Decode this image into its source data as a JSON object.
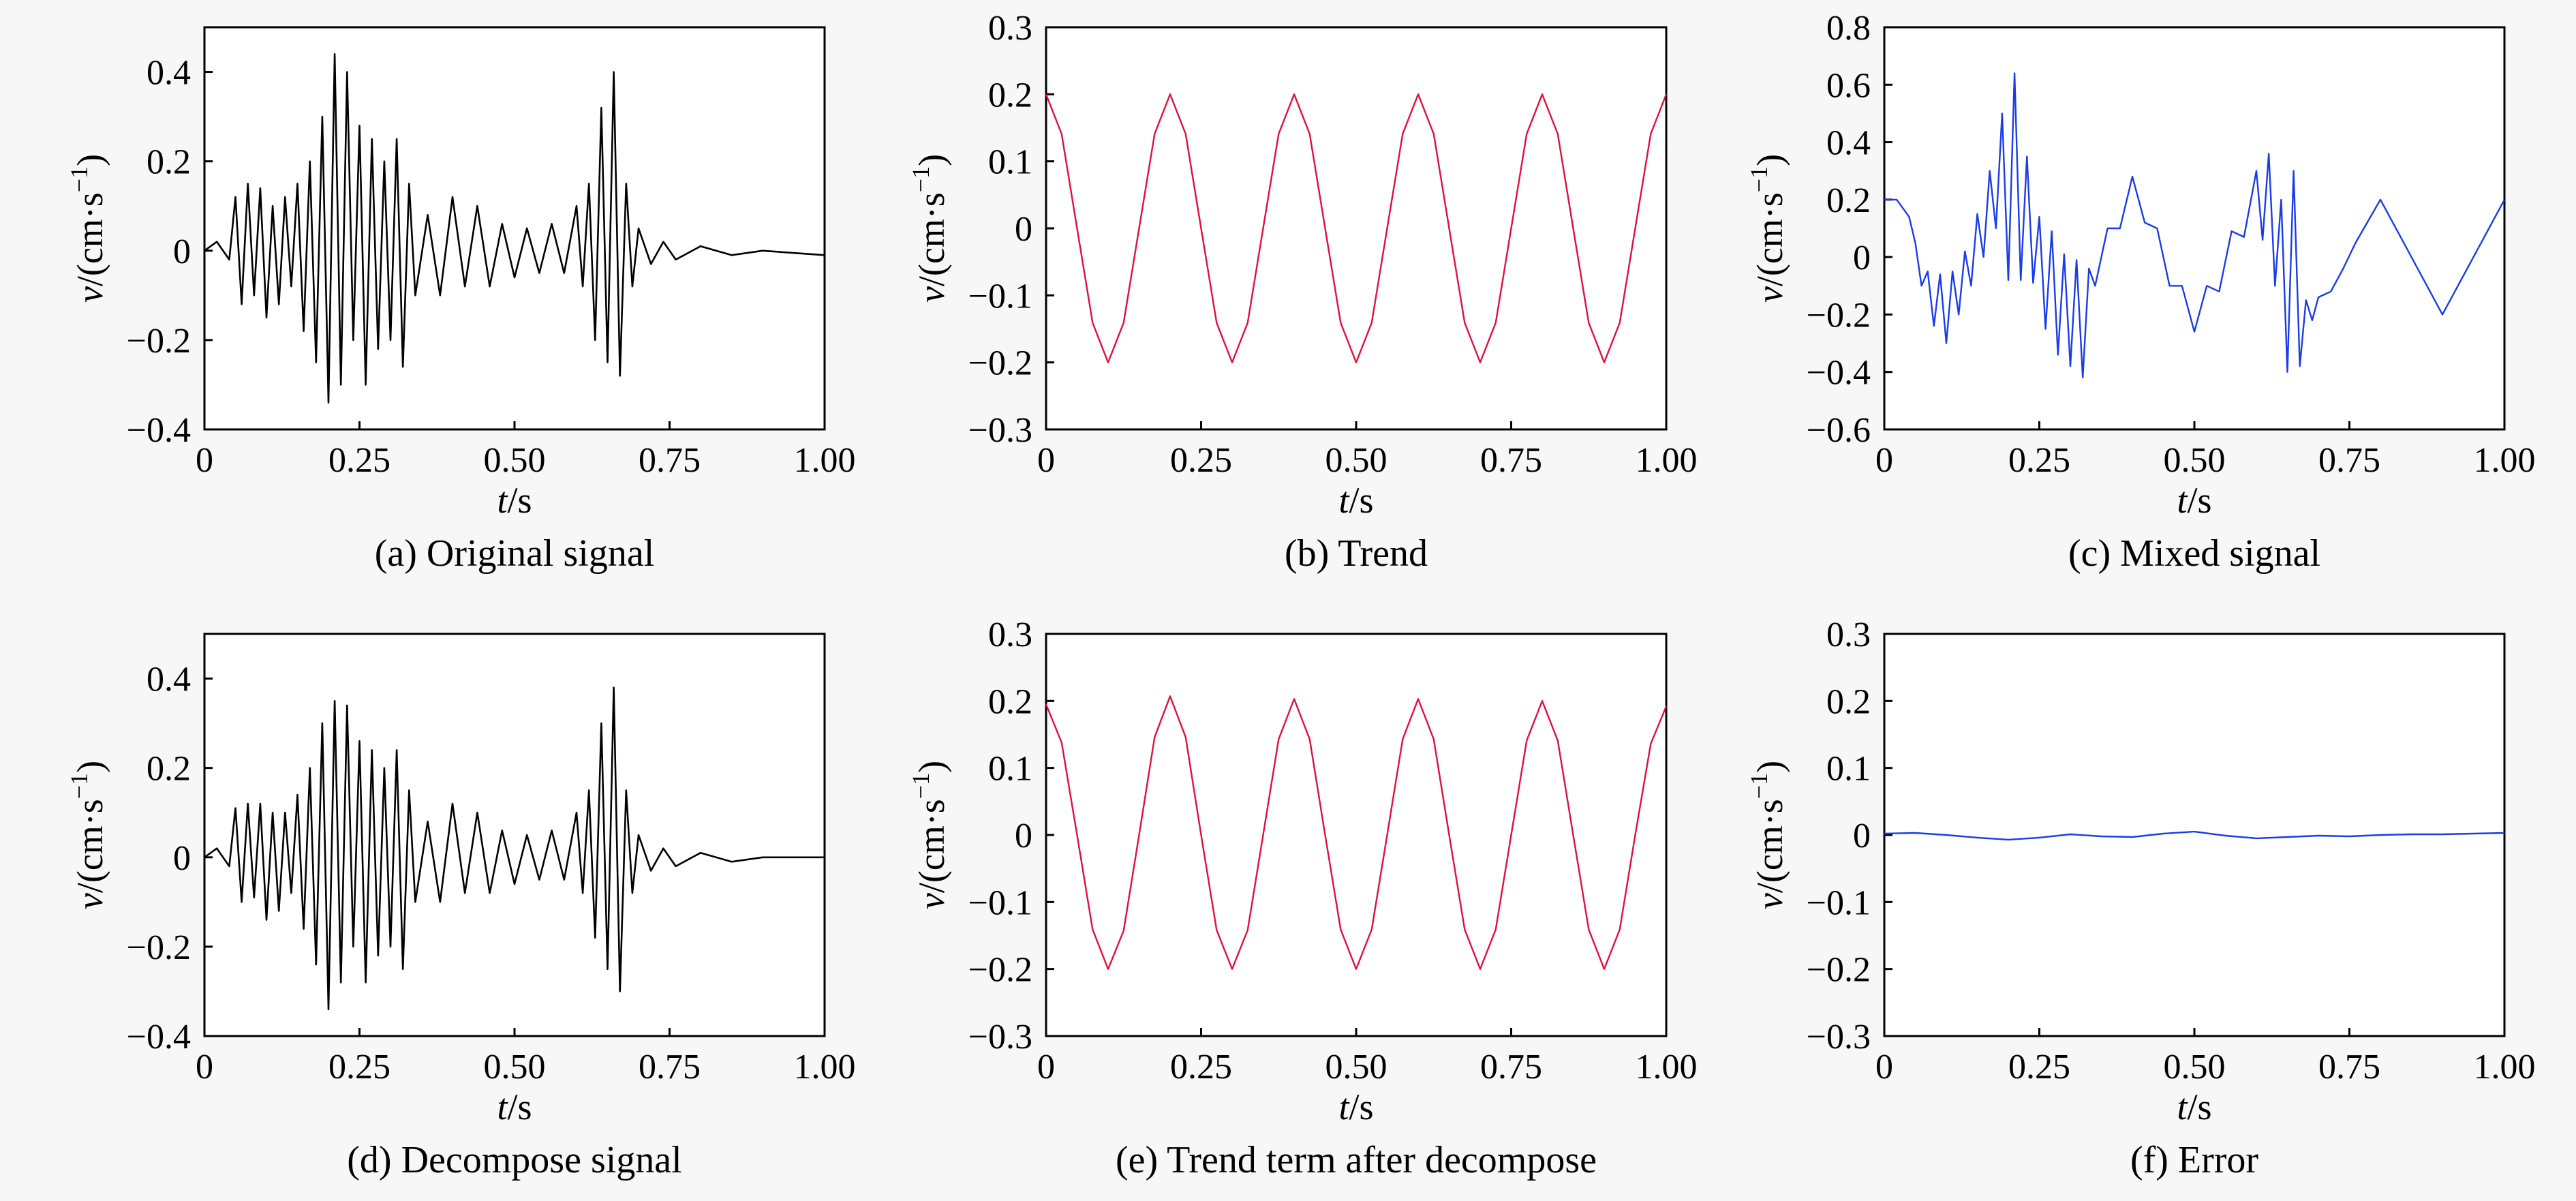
{
  "chart_data": [
    {
      "id": "a",
      "type": "line",
      "caption": "(a) Original signal",
      "xlabel_var": "t",
      "xlabel_unit": "/s",
      "ylabel_var": "v",
      "ylabel_unit": "/(cm·s",
      "ylabel_exp": "−1",
      "ylabel_close": ")",
      "xlim": [
        0,
        1.0
      ],
      "ylim": [
        -0.4,
        0.5
      ],
      "xticks": [
        {
          "v": 0,
          "label": "0"
        },
        {
          "v": 0.25,
          "label": "0.25"
        },
        {
          "v": 0.5,
          "label": "0.50"
        },
        {
          "v": 0.75,
          "label": "0.75"
        },
        {
          "v": 1.0,
          "label": "1.00"
        }
      ],
      "yticks": [
        {
          "v": -0.4,
          "label": "−0.4"
        },
        {
          "v": -0.2,
          "label": "−0.2"
        },
        {
          "v": 0,
          "label": "0"
        },
        {
          "v": 0.2,
          "label": "0.2"
        },
        {
          "v": 0.4,
          "label": "0.4"
        }
      ],
      "series": [
        {
          "color": "#000000",
          "x": [
            0,
            0.02,
            0.04,
            0.05,
            0.06,
            0.07,
            0.08,
            0.09,
            0.1,
            0.11,
            0.12,
            0.13,
            0.14,
            0.15,
            0.16,
            0.17,
            0.18,
            0.19,
            0.2,
            0.21,
            0.22,
            0.23,
            0.24,
            0.25,
            0.26,
            0.27,
            0.28,
            0.29,
            0.3,
            0.31,
            0.32,
            0.33,
            0.34,
            0.36,
            0.38,
            0.4,
            0.42,
            0.44,
            0.46,
            0.48,
            0.5,
            0.52,
            0.54,
            0.56,
            0.58,
            0.6,
            0.61,
            0.62,
            0.63,
            0.64,
            0.65,
            0.66,
            0.67,
            0.68,
            0.69,
            0.7,
            0.72,
            0.74,
            0.76,
            0.8,
            0.85,
            0.9,
            1.0
          ],
          "y": [
            0,
            0.02,
            -0.02,
            0.12,
            -0.12,
            0.15,
            -0.1,
            0.14,
            -0.15,
            0.1,
            -0.12,
            0.12,
            -0.08,
            0.15,
            -0.18,
            0.2,
            -0.25,
            0.3,
            -0.34,
            0.44,
            -0.3,
            0.4,
            -0.2,
            0.28,
            -0.3,
            0.25,
            -0.22,
            0.2,
            -0.2,
            0.25,
            -0.26,
            0.15,
            -0.1,
            0.08,
            -0.1,
            0.12,
            -0.08,
            0.1,
            -0.08,
            0.06,
            -0.06,
            0.05,
            -0.05,
            0.06,
            -0.05,
            0.1,
            -0.08,
            0.15,
            -0.2,
            0.32,
            -0.25,
            0.4,
            -0.28,
            0.15,
            -0.08,
            0.05,
            -0.03,
            0.02,
            -0.02,
            0.01,
            -0.01,
            0,
            -0.01
          ]
        }
      ]
    },
    {
      "id": "b",
      "type": "line",
      "caption": "(b) Trend",
      "xlabel_var": "t",
      "xlabel_unit": "/s",
      "ylabel_var": "v",
      "ylabel_unit": "/(cm·s",
      "ylabel_exp": "−1",
      "ylabel_close": ")",
      "xlim": [
        0,
        1.0
      ],
      "ylim": [
        -0.3,
        0.3
      ],
      "xticks": [
        {
          "v": 0,
          "label": "0"
        },
        {
          "v": 0.25,
          "label": "0.25"
        },
        {
          "v": 0.5,
          "label": "0.50"
        },
        {
          "v": 0.75,
          "label": "0.75"
        },
        {
          "v": 1.0,
          "label": "1.00"
        }
      ],
      "yticks": [
        {
          "v": -0.3,
          "label": "−0.3"
        },
        {
          "v": -0.2,
          "label": "−0.2"
        },
        {
          "v": -0.1,
          "label": "−0.1"
        },
        {
          "v": 0,
          "label": "0"
        },
        {
          "v": 0.1,
          "label": "0.1"
        },
        {
          "v": 0.2,
          "label": "0.2"
        },
        {
          "v": 0.3,
          "label": "0.3"
        }
      ],
      "series": [
        {
          "color": "#e0103c",
          "x": [
            0,
            0.025,
            0.05,
            0.075,
            0.1,
            0.125,
            0.15,
            0.175,
            0.2,
            0.225,
            0.25,
            0.275,
            0.3,
            0.325,
            0.35,
            0.375,
            0.4,
            0.425,
            0.45,
            0.475,
            0.5,
            0.525,
            0.55,
            0.575,
            0.6,
            0.625,
            0.65,
            0.675,
            0.7,
            0.725,
            0.75,
            0.775,
            0.8,
            0.825,
            0.85,
            0.875,
            0.9,
            0.925,
            0.95,
            0.975,
            1.0
          ],
          "y": [
            0.2,
            0.141,
            0,
            -0.141,
            -0.2,
            -0.141,
            0,
            0.141,
            0.2,
            0.141,
            0,
            -0.141,
            -0.2,
            -0.141,
            0,
            0.141,
            0.2,
            0.141,
            0,
            -0.141,
            -0.2,
            -0.141,
            0,
            0.141,
            0.2,
            0.141,
            0,
            -0.141,
            -0.2,
            -0.141,
            0,
            0.141,
            0.2,
            0.141,
            0,
            -0.141,
            -0.2,
            -0.141,
            0,
            0.141,
            0.2
          ]
        }
      ]
    },
    {
      "id": "c",
      "type": "line",
      "caption": "(c) Mixed signal",
      "xlabel_var": "t",
      "xlabel_unit": "/s",
      "ylabel_var": "v",
      "ylabel_unit": "/(cm·s",
      "ylabel_exp": "−1",
      "ylabel_close": ")",
      "xlim": [
        0,
        1.0
      ],
      "ylim": [
        -0.6,
        0.8
      ],
      "xticks": [
        {
          "v": 0,
          "label": "0"
        },
        {
          "v": 0.25,
          "label": "0.25"
        },
        {
          "v": 0.5,
          "label": "0.50"
        },
        {
          "v": 0.75,
          "label": "0.75"
        },
        {
          "v": 1.0,
          "label": "1.00"
        }
      ],
      "yticks": [
        {
          "v": -0.6,
          "label": "−0.6"
        },
        {
          "v": -0.4,
          "label": "−0.4"
        },
        {
          "v": -0.2,
          "label": "−0.2"
        },
        {
          "v": 0,
          "label": "0"
        },
        {
          "v": 0.2,
          "label": "0.2"
        },
        {
          "v": 0.4,
          "label": "0.4"
        },
        {
          "v": 0.6,
          "label": "0.6"
        },
        {
          "v": 0.8,
          "label": "0.8"
        }
      ],
      "series": [
        {
          "color": "#1a3ce8",
          "x": [
            0,
            0.02,
            0.04,
            0.05,
            0.06,
            0.07,
            0.08,
            0.09,
            0.1,
            0.11,
            0.12,
            0.13,
            0.14,
            0.15,
            0.16,
            0.17,
            0.18,
            0.19,
            0.2,
            0.21,
            0.22,
            0.23,
            0.24,
            0.25,
            0.26,
            0.27,
            0.28,
            0.29,
            0.3,
            0.31,
            0.32,
            0.33,
            0.34,
            0.36,
            0.38,
            0.4,
            0.42,
            0.44,
            0.46,
            0.48,
            0.5,
            0.52,
            0.54,
            0.56,
            0.58,
            0.6,
            0.61,
            0.62,
            0.63,
            0.64,
            0.65,
            0.66,
            0.67,
            0.68,
            0.69,
            0.7,
            0.72,
            0.74,
            0.76,
            0.8,
            0.85,
            0.9,
            1.0
          ],
          "y": [
            0.2,
            0.2,
            0.14,
            0.05,
            -0.1,
            -0.05,
            -0.24,
            -0.06,
            -0.3,
            -0.05,
            -0.2,
            0.02,
            -0.1,
            0.15,
            0.0,
            0.3,
            0.1,
            0.5,
            -0.08,
            0.64,
            -0.08,
            0.35,
            -0.09,
            0.14,
            -0.25,
            0.09,
            -0.34,
            0.01,
            -0.38,
            -0.01,
            -0.42,
            -0.04,
            -0.1,
            0.1,
            0.1,
            0.28,
            0.12,
            0.1,
            -0.1,
            -0.1,
            -0.26,
            -0.1,
            -0.12,
            0.09,
            0.07,
            0.3,
            0.06,
            0.36,
            -0.1,
            0.2,
            -0.4,
            0.3,
            -0.38,
            -0.15,
            -0.22,
            -0.14,
            -0.12,
            -0.04,
            0.05,
            0.2,
            0,
            -0.2,
            0.2
          ]
        }
      ]
    },
    {
      "id": "d",
      "type": "line",
      "caption": "(d) Decompose signal",
      "xlabel_var": "t",
      "xlabel_unit": "/s",
      "ylabel_var": "v",
      "ylabel_unit": "/(cm·s",
      "ylabel_exp": "−1",
      "ylabel_close": ")",
      "xlim": [
        0,
        1.0
      ],
      "ylim": [
        -0.4,
        0.5
      ],
      "xticks": [
        {
          "v": 0,
          "label": "0"
        },
        {
          "v": 0.25,
          "label": "0.25"
        },
        {
          "v": 0.5,
          "label": "0.50"
        },
        {
          "v": 0.75,
          "label": "0.75"
        },
        {
          "v": 1.0,
          "label": "1.00"
        }
      ],
      "yticks": [
        {
          "v": -0.4,
          "label": "−0.4"
        },
        {
          "v": -0.2,
          "label": "−0.2"
        },
        {
          "v": 0,
          "label": "0"
        },
        {
          "v": 0.2,
          "label": "0.2"
        },
        {
          "v": 0.4,
          "label": "0.4"
        }
      ],
      "series": [
        {
          "color": "#000000",
          "x": [
            0,
            0.02,
            0.04,
            0.05,
            0.06,
            0.07,
            0.08,
            0.09,
            0.1,
            0.11,
            0.12,
            0.13,
            0.14,
            0.15,
            0.16,
            0.17,
            0.18,
            0.19,
            0.2,
            0.21,
            0.22,
            0.23,
            0.24,
            0.25,
            0.26,
            0.27,
            0.28,
            0.29,
            0.3,
            0.31,
            0.32,
            0.33,
            0.34,
            0.36,
            0.38,
            0.4,
            0.42,
            0.44,
            0.46,
            0.48,
            0.5,
            0.52,
            0.54,
            0.56,
            0.58,
            0.6,
            0.61,
            0.62,
            0.63,
            0.64,
            0.65,
            0.66,
            0.67,
            0.68,
            0.69,
            0.7,
            0.72,
            0.74,
            0.76,
            0.8,
            0.85,
            0.9,
            1.0
          ],
          "y": [
            0,
            0.02,
            -0.02,
            0.11,
            -0.1,
            0.12,
            -0.09,
            0.12,
            -0.14,
            0.1,
            -0.12,
            0.1,
            -0.08,
            0.14,
            -0.16,
            0.2,
            -0.24,
            0.3,
            -0.34,
            0.35,
            -0.28,
            0.34,
            -0.2,
            0.26,
            -0.28,
            0.24,
            -0.22,
            0.2,
            -0.2,
            0.24,
            -0.25,
            0.15,
            -0.1,
            0.08,
            -0.1,
            0.12,
            -0.08,
            0.1,
            -0.08,
            0.06,
            -0.06,
            0.05,
            -0.05,
            0.06,
            -0.05,
            0.1,
            -0.08,
            0.15,
            -0.18,
            0.3,
            -0.25,
            0.38,
            -0.3,
            0.15,
            -0.08,
            0.05,
            -0.03,
            0.02,
            -0.02,
            0.01,
            -0.01,
            0,
            0
          ]
        }
      ]
    },
    {
      "id": "e",
      "type": "line",
      "caption": "(e) Trend term after decompose",
      "xlabel_var": "t",
      "xlabel_unit": "/s",
      "ylabel_var": "v",
      "ylabel_unit": "/(cm·s",
      "ylabel_exp": "−1",
      "ylabel_close": ")",
      "xlim": [
        0,
        1.0
      ],
      "ylim": [
        -0.3,
        0.3
      ],
      "xticks": [
        {
          "v": 0,
          "label": "0"
        },
        {
          "v": 0.25,
          "label": "0.25"
        },
        {
          "v": 0.5,
          "label": "0.50"
        },
        {
          "v": 0.75,
          "label": "0.75"
        },
        {
          "v": 1.0,
          "label": "1.00"
        }
      ],
      "yticks": [
        {
          "v": -0.3,
          "label": "−0.3"
        },
        {
          "v": -0.2,
          "label": "−0.2"
        },
        {
          "v": -0.1,
          "label": "−0.1"
        },
        {
          "v": 0,
          "label": "0"
        },
        {
          "v": 0.1,
          "label": "0.1"
        },
        {
          "v": 0.2,
          "label": "0.2"
        },
        {
          "v": 0.3,
          "label": "0.3"
        }
      ],
      "series": [
        {
          "color": "#e0103c",
          "x": [
            0,
            0.025,
            0.05,
            0.075,
            0.1,
            0.125,
            0.15,
            0.175,
            0.2,
            0.225,
            0.25,
            0.275,
            0.3,
            0.325,
            0.35,
            0.375,
            0.4,
            0.425,
            0.45,
            0.475,
            0.5,
            0.525,
            0.55,
            0.575,
            0.6,
            0.625,
            0.65,
            0.675,
            0.7,
            0.725,
            0.75,
            0.775,
            0.8,
            0.825,
            0.85,
            0.875,
            0.9,
            0.925,
            0.95,
            0.975,
            1.0
          ],
          "y": [
            0.195,
            0.138,
            0,
            -0.141,
            -0.2,
            -0.143,
            0,
            0.146,
            0.207,
            0.146,
            0,
            -0.142,
            -0.2,
            -0.142,
            0,
            0.143,
            0.203,
            0.143,
            0,
            -0.141,
            -0.2,
            -0.141,
            0,
            0.143,
            0.203,
            0.143,
            0,
            -0.141,
            -0.2,
            -0.141,
            0,
            0.141,
            0.2,
            0.141,
            0,
            -0.141,
            -0.2,
            -0.141,
            0,
            0.136,
            0.192
          ]
        }
      ]
    },
    {
      "id": "f",
      "type": "line",
      "caption": "(f) Error",
      "xlabel_var": "t",
      "xlabel_unit": "/s",
      "ylabel_var": "v",
      "ylabel_unit": "/(cm·s",
      "ylabel_exp": "−1",
      "ylabel_close": ")",
      "xlim": [
        0,
        1.0
      ],
      "ylim": [
        -0.3,
        0.3
      ],
      "xticks": [
        {
          "v": 0,
          "label": "0"
        },
        {
          "v": 0.25,
          "label": "0.25"
        },
        {
          "v": 0.5,
          "label": "0.50"
        },
        {
          "v": 0.75,
          "label": "0.75"
        },
        {
          "v": 1.0,
          "label": "1.00"
        }
      ],
      "yticks": [
        {
          "v": -0.3,
          "label": "−0.3"
        },
        {
          "v": -0.2,
          "label": "−0.2"
        },
        {
          "v": -0.1,
          "label": "−0.1"
        },
        {
          "v": 0,
          "label": "0"
        },
        {
          "v": 0.1,
          "label": "0.1"
        },
        {
          "v": 0.2,
          "label": "0.2"
        },
        {
          "v": 0.3,
          "label": "0.3"
        }
      ],
      "series": [
        {
          "color": "#1a3ce8",
          "x": [
            0,
            0.05,
            0.1,
            0.15,
            0.2,
            0.25,
            0.3,
            0.35,
            0.4,
            0.45,
            0.5,
            0.55,
            0.6,
            0.65,
            0.7,
            0.75,
            0.8,
            0.85,
            0.9,
            0.95,
            1.0
          ],
          "y": [
            0.002,
            0.003,
            0,
            -0.004,
            -0.007,
            -0.004,
            0.001,
            -0.002,
            -0.003,
            0.002,
            0.005,
            -0.001,
            -0.005,
            -0.003,
            -0.001,
            -0.002,
            0,
            0.001,
            0.001,
            0.002,
            0.003
          ]
        }
      ]
    }
  ]
}
